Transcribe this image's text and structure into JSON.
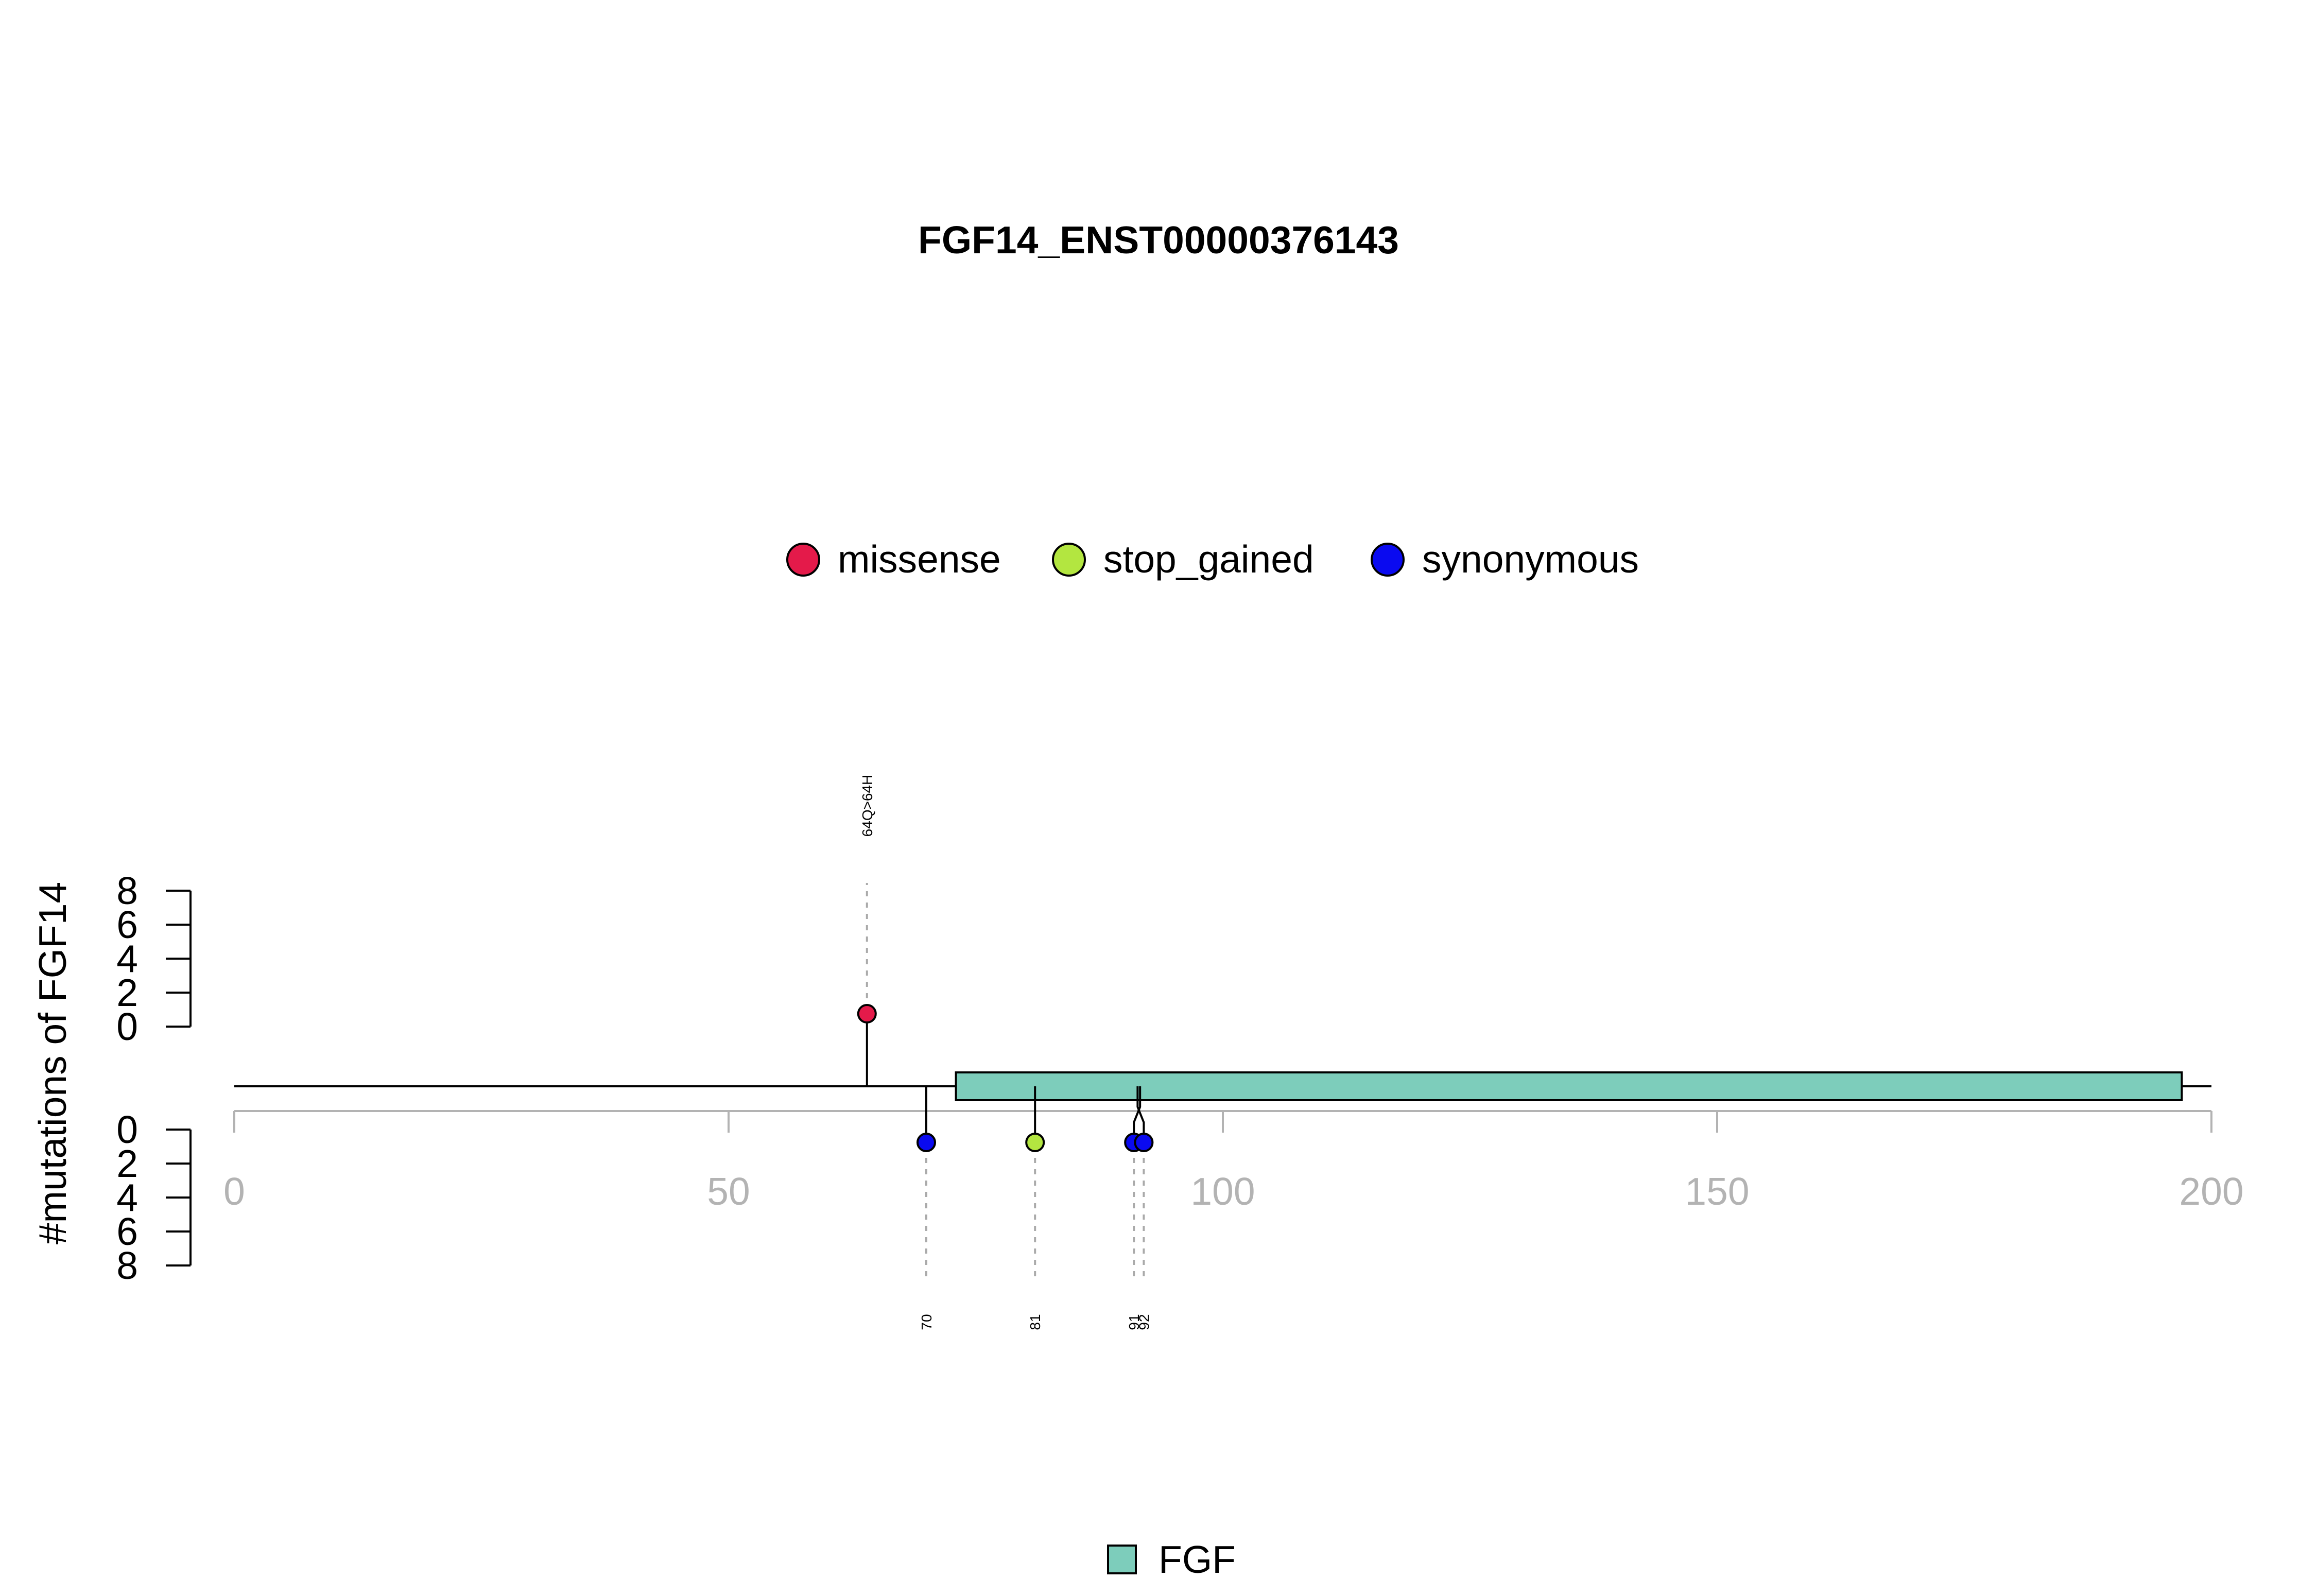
{
  "chart_data": {
    "type": "lollipop",
    "title": "FGF14_ENST00000376143",
    "ylabel": "#mutations of FGF14",
    "xlim": [
      0,
      200
    ],
    "x_ticks": [
      0,
      50,
      100,
      150,
      200
    ],
    "y_ticks": [
      0,
      2,
      4,
      6,
      8
    ],
    "y_tick_labels": [
      "0",
      "2",
      "4",
      "6",
      "8"
    ],
    "upper_ylim": [
      0,
      8
    ],
    "lower_ylim": [
      0,
      8
    ],
    "protein_length": 200,
    "legend": [
      {
        "label": "missense",
        "color": "#E41A4A"
      },
      {
        "label": "stop_gained",
        "color": "#B3E640"
      },
      {
        "label": "synonymous",
        "color": "#0A0AF0"
      }
    ],
    "mutations": [
      {
        "position": 64,
        "side": "top",
        "count": 1,
        "type": "missense",
        "color": "#E41A4A",
        "label": "64Q>64H"
      },
      {
        "position": 70,
        "side": "bottom",
        "count": 1,
        "type": "synonymous",
        "color": "#0A0AF0",
        "label": "70"
      },
      {
        "position": 81,
        "side": "bottom",
        "count": 1,
        "type": "stop_gained",
        "color": "#B3E640",
        "label": "81"
      },
      {
        "position": 91,
        "side": "bottom",
        "count": 1,
        "type": "synonymous",
        "color": "#0A0AF0",
        "label": "91"
      },
      {
        "position": 92,
        "side": "bottom",
        "count": 1,
        "type": "synonymous",
        "color": "#0A0AF0",
        "label": "92"
      }
    ],
    "domains": [
      {
        "name": "FGF",
        "start": 73,
        "end": 197,
        "color": "#7DCDBB"
      }
    ],
    "domain_legend": [
      {
        "label": "FGF",
        "color": "#7DCDBB"
      }
    ]
  }
}
